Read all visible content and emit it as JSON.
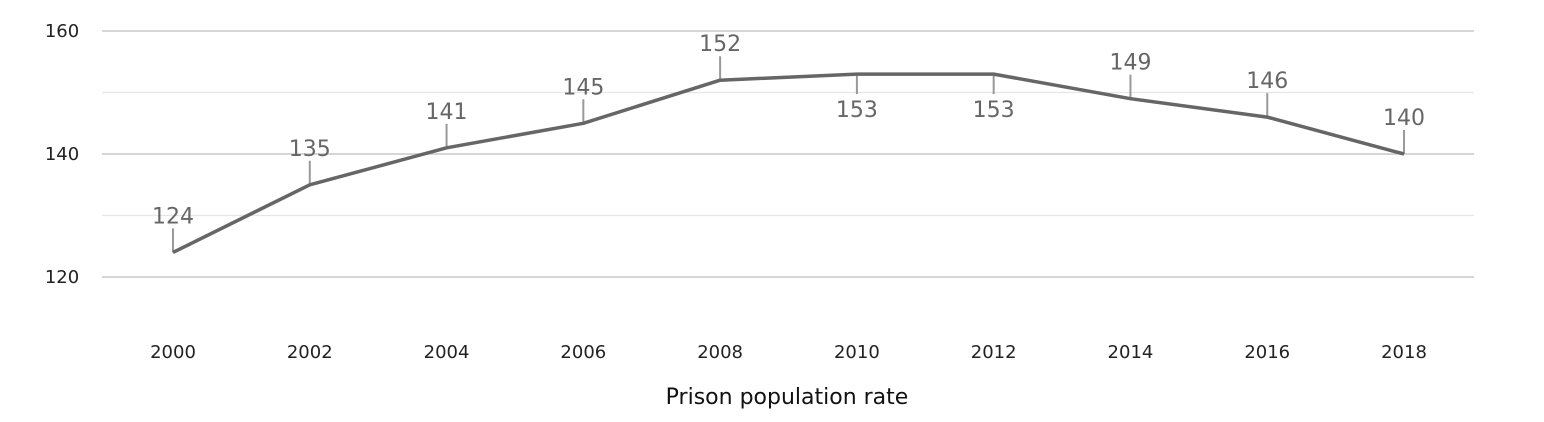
{
  "chart_data": {
    "type": "line",
    "title": "",
    "xlabel": "Prison population rate",
    "ylabel": "",
    "x": [
      "2000",
      "2002",
      "2004",
      "2006",
      "2008",
      "2010",
      "2012",
      "2014",
      "2016",
      "2018"
    ],
    "series": [
      {
        "values": [
          124,
          135,
          141,
          145,
          152,
          153,
          153,
          149,
          146,
          140
        ]
      }
    ],
    "y_ticks": [
      "120",
      "140",
      "160"
    ],
    "ylim": [
      120,
      160
    ],
    "minor_gridlines": [
      130,
      150
    ],
    "data_labels": [
      "124",
      "135",
      "141",
      "145",
      "152",
      "153",
      "153",
      "149",
      "146",
      "140"
    ],
    "data_label_positions": [
      "above",
      "above",
      "above",
      "above",
      "above",
      "below",
      "below",
      "above",
      "above",
      "above"
    ],
    "grid": true,
    "legend": "none",
    "colors": {
      "line": "#666666",
      "grid_major": "#c8c8c8",
      "grid_minor": "#e6e6e6",
      "leader": "#999999"
    }
  }
}
